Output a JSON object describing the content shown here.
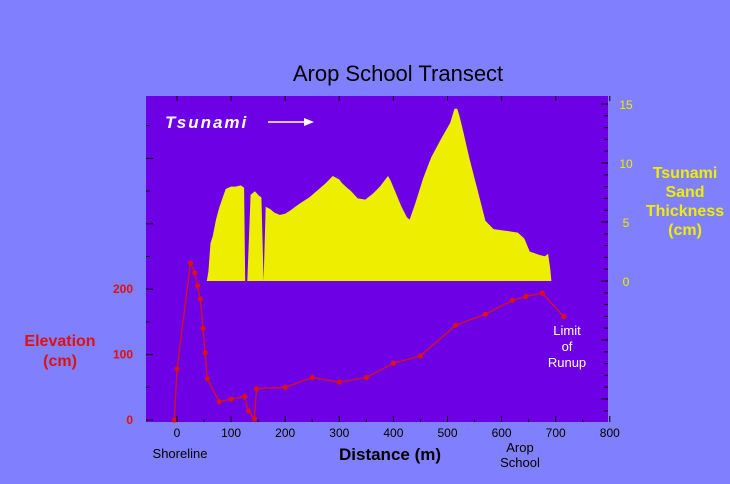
{
  "chart_data": {
    "type": "line",
    "title": "Arop School Transect",
    "xlabel": "Distance (m)",
    "x_ticks": [
      "0",
      "100",
      "200",
      "300",
      "400",
      "500",
      "600",
      "700",
      "800"
    ],
    "x_tick_values": [
      0,
      100,
      200,
      300,
      400,
      500,
      600,
      700,
      800
    ],
    "xlim": [
      -55,
      800
    ],
    "annotations": {
      "tsunami": "Tsunami",
      "shoreline": "Shoreline",
      "arop_school": [
        "Arop",
        "School"
      ],
      "limit_of_runup": [
        "Limit",
        "of",
        "Runup"
      ]
    },
    "elevation": {
      "label": [
        "Elevation",
        "(cm)"
      ],
      "color": "#dd1111",
      "ticks": [
        "0",
        "100",
        "200"
      ],
      "tick_values": [
        0,
        100,
        200
      ],
      "x": [
        -5,
        0,
        25,
        33,
        38,
        43,
        48,
        52,
        56,
        78,
        100,
        125,
        132,
        143,
        147,
        200,
        250,
        300,
        350,
        400,
        450,
        515,
        570,
        620,
        645,
        675,
        715
      ],
      "y": [
        0,
        78,
        240,
        225,
        205,
        185,
        140,
        103,
        63,
        28,
        32,
        36,
        14,
        2,
        48,
        50,
        65,
        58,
        65,
        87,
        98,
        145,
        162,
        183,
        189,
        194,
        158
      ]
    },
    "sand_thickness": {
      "label": [
        "Tsunami",
        "Sand",
        "Thickness",
        "(cm)"
      ],
      "color": "#eeee00",
      "ticks": [
        "0",
        "5",
        "10",
        "15"
      ],
      "tick_values": [
        0,
        5,
        10,
        15
      ],
      "x": [
        55,
        58,
        62,
        66,
        72,
        78,
        84,
        90,
        95,
        100,
        108,
        118,
        124,
        126,
        130,
        136,
        144,
        152,
        156,
        160,
        164,
        172,
        180,
        190,
        200,
        210,
        225,
        245,
        260,
        275,
        288,
        300,
        305,
        312,
        322,
        334,
        348,
        362,
        375,
        385,
        390,
        395,
        405,
        415,
        425,
        430,
        440,
        455,
        470,
        490,
        505,
        513,
        518,
        522,
        530,
        540,
        555,
        570,
        585,
        600,
        615,
        630,
        642,
        652,
        670,
        680,
        686,
        690,
        692
      ],
      "y": [
        0,
        0.8,
        3.2,
        3.8,
        5.2,
        6.2,
        7.0,
        7.8,
        7.9,
        8.0,
        8.0,
        8.1,
        7.9,
        0,
        0,
        7.3,
        7.6,
        7.2,
        7.1,
        0,
        6.3,
        6.1,
        5.8,
        5.6,
        5.7,
        6.0,
        6.5,
        7.1,
        7.7,
        8.3,
        8.9,
        8.6,
        8.3,
        8.0,
        7.6,
        7.0,
        6.9,
        7.4,
        8.0,
        8.6,
        8.9,
        8.5,
        7.4,
        6.3,
        5.4,
        5.2,
        6.5,
        8.7,
        10.5,
        12.2,
        13.4,
        14.6,
        14.6,
        14.0,
        12.5,
        10.5,
        7.8,
        5.1,
        4.4,
        4.3,
        4.2,
        4.1,
        3.6,
        2.5,
        2.2,
        2.1,
        2.3,
        1.0,
        0
      ]
    }
  }
}
